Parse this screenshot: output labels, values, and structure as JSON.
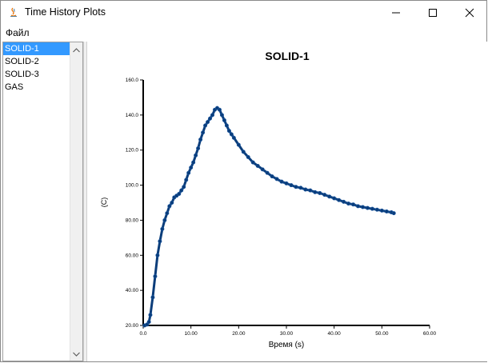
{
  "window": {
    "title": "Time History Plots",
    "controls": {
      "minimize": "—",
      "maximize": "☐",
      "close": "✕"
    }
  },
  "menu": {
    "items": [
      {
        "label": "Файл"
      }
    ]
  },
  "sidebar": {
    "items": [
      {
        "label": "SOLID-1",
        "selected": true
      },
      {
        "label": "SOLID-2",
        "selected": false
      },
      {
        "label": "SOLID-3",
        "selected": false
      },
      {
        "label": "GAS",
        "selected": false
      }
    ]
  },
  "chart_data": {
    "type": "line",
    "title": "SOLID-1",
    "xlabel": "Время (s)",
    "ylabel": "(C)",
    "xlim": [
      0,
      60
    ],
    "ylim": [
      20,
      160
    ],
    "xticks": [
      "0.0",
      "10.00",
      "20.00",
      "30.00",
      "40.00",
      "50.00",
      "60.00"
    ],
    "yticks": [
      "20.00",
      "40.00",
      "60.00",
      "80.00",
      "100.0",
      "120.0",
      "140.0",
      "160.0"
    ],
    "grid": false,
    "color": "#0b3d7a",
    "series": [
      {
        "x": [
          0.3,
          0.8,
          1.2,
          1.5,
          2,
          2.5,
          3,
          3.5,
          4,
          4.5,
          5,
          5.5,
          6,
          6.5,
          7,
          7.5,
          8,
          8.5,
          9,
          9.5,
          10,
          10.5,
          11,
          11.5,
          12,
          12.5,
          13,
          13.5,
          14,
          14.5,
          15,
          15.5,
          16,
          16.5,
          17,
          17.5,
          18,
          18.5,
          19,
          20,
          21,
          22,
          23,
          24,
          25,
          26,
          27,
          28,
          29,
          30,
          31,
          32,
          33,
          34,
          35,
          36,
          37,
          38,
          39,
          40,
          41,
          42,
          43,
          44,
          45,
          46,
          47,
          48,
          49,
          50,
          51,
          52,
          52.5
        ],
        "y": [
          20,
          20.5,
          22,
          26,
          36,
          48,
          60,
          68,
          75,
          80,
          84,
          88,
          90,
          93,
          94,
          95,
          97,
          99,
          103,
          107,
          110,
          113,
          117,
          121,
          126,
          130,
          134,
          136,
          138,
          140,
          143,
          144,
          143,
          140,
          137,
          134,
          131,
          129,
          127,
          123,
          119,
          116,
          113,
          111,
          109,
          107,
          105,
          103.5,
          102,
          101,
          100,
          99,
          98.5,
          97.5,
          97,
          96,
          95.5,
          94.5,
          93.5,
          92.5,
          91.5,
          90.5,
          89.5,
          89,
          88,
          87.5,
          87,
          86.5,
          86,
          85.5,
          85,
          84.5,
          84
        ]
      }
    ]
  }
}
